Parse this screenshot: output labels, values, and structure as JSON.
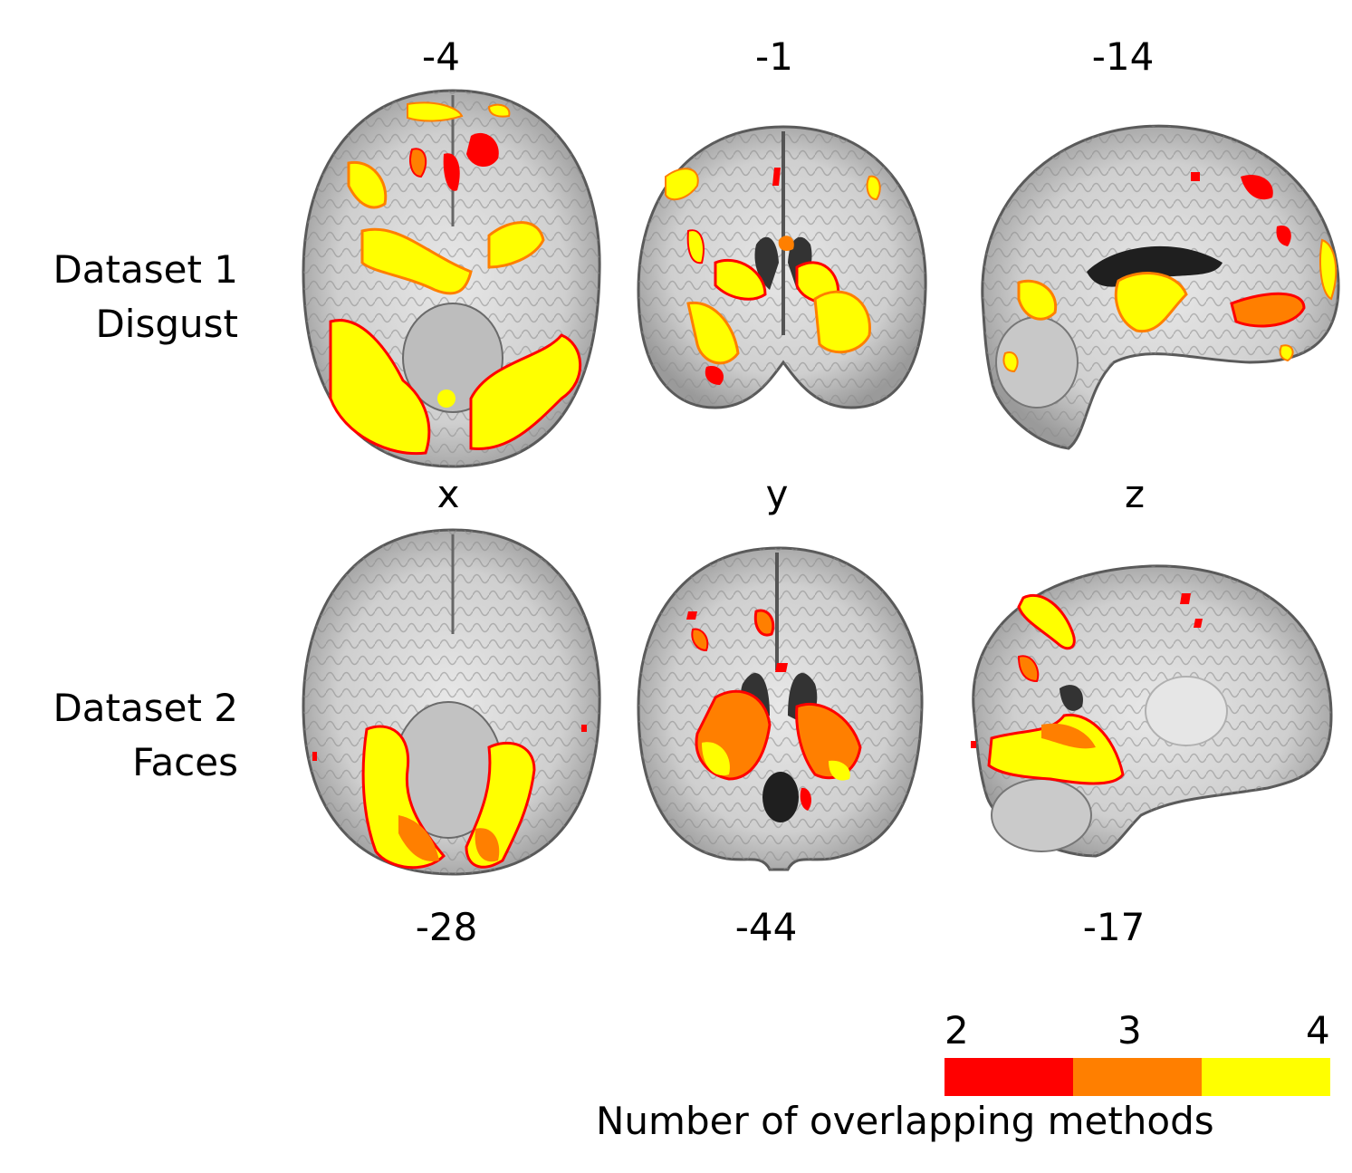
{
  "rows": [
    {
      "label_line1": "Dataset 1",
      "label_line2": "Disgust",
      "coords": [
        "-4",
        "-1",
        "-14"
      ]
    },
    {
      "label_line1": "Dataset 2",
      "label_line2": "Faces",
      "coords": [
        "-28",
        "-44",
        "-17"
      ]
    }
  ],
  "axis_labels": [
    "x",
    "y",
    "z"
  ],
  "legend": {
    "ticks": [
      "2",
      "3",
      "4"
    ],
    "title": "Number of overlapping methods",
    "colors": [
      "#ff0000",
      "#ff7f00",
      "#ffff00"
    ]
  },
  "colors": {
    "level2": "#ff0000",
    "level3": "#ff7f00",
    "level4": "#ffff00",
    "brain_fill": "#d9d9d9",
    "brain_edge": "#555555"
  }
}
